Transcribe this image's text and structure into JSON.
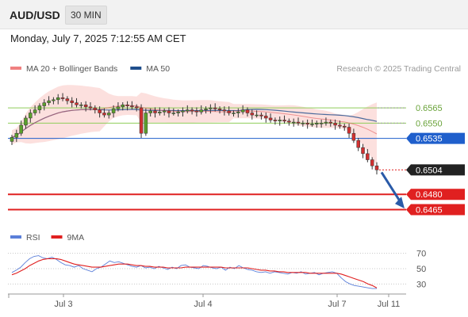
{
  "header": {
    "symbol": "AUD/USD",
    "timeframe": "30 MIN"
  },
  "timestamp": "Monday, July 7, 2025 7:12:55 AM CET",
  "chart_data": [
    {
      "type": "candlestick",
      "legend": [
        {
          "label": "MA 20 + Bollinger Bands",
          "color": "#f08080"
        },
        {
          "label": "MA 50",
          "color": "#1f4e8c"
        }
      ],
      "credit": "Research © 2025 Trading Central",
      "x_ticks": [
        "Jul 3",
        "Jul 4",
        "Jul 7",
        "Jul 11"
      ],
      "ylim": [
        0.6456,
        0.6583
      ],
      "current_price": 0.6504,
      "levels": [
        {
          "label": "0.6565",
          "value": 0.6565,
          "kind": "resistance",
          "color": "#8fce5a"
        },
        {
          "label": "0.6550",
          "value": 0.655,
          "kind": "resistance",
          "color": "#8fce5a"
        },
        {
          "label": "0.6535",
          "value": 0.6535,
          "kind": "pivot",
          "color": "#1f5fcc"
        },
        {
          "label": "0.6504",
          "value": 0.6504,
          "kind": "last",
          "color": "#222222"
        },
        {
          "label": "0.6480",
          "value": 0.648,
          "kind": "target",
          "color": "#e02020"
        },
        {
          "label": "0.6465",
          "value": 0.6465,
          "kind": "target",
          "color": "#e02020"
        }
      ],
      "forecast_arrow": {
        "from": 0.6504,
        "to": 0.6466,
        "direction": "down",
        "color": "#2a5aa8"
      },
      "closes": [
        0.6536,
        0.654,
        0.6548,
        0.6555,
        0.656,
        0.6563,
        0.6567,
        0.657,
        0.6572,
        0.6573,
        0.6575,
        0.6574,
        0.6572,
        0.657,
        0.6568,
        0.6568,
        0.6566,
        0.6565,
        0.6563,
        0.656,
        0.6558,
        0.656,
        0.6564,
        0.6566,
        0.6568,
        0.6567,
        0.6566,
        0.6565,
        0.654,
        0.656,
        0.6562,
        0.656,
        0.6561,
        0.6562,
        0.656,
        0.656,
        0.6561,
        0.6562,
        0.6563,
        0.6562,
        0.6561,
        0.6563,
        0.6564,
        0.6565,
        0.6564,
        0.6563,
        0.6562,
        0.656,
        0.656,
        0.6561,
        0.6563,
        0.656,
        0.6558,
        0.6558,
        0.6557,
        0.6555,
        0.6553,
        0.6552,
        0.6553,
        0.6552,
        0.6551,
        0.6551,
        0.655,
        0.655,
        0.6549,
        0.6549,
        0.655,
        0.655,
        0.6551,
        0.655,
        0.6548,
        0.6547,
        0.6546,
        0.654,
        0.6533,
        0.6526,
        0.652,
        0.6514,
        0.6508,
        0.6504
      ]
    },
    {
      "type": "line",
      "legend": [
        {
          "label": "RSI",
          "color": "#5b7fd9"
        },
        {
          "label": "9MA",
          "color": "#e02020"
        }
      ],
      "y_ticks": [
        "70",
        "50",
        "30"
      ],
      "ylim": [
        20,
        80
      ],
      "reference_lines": [
        70,
        50,
        30
      ],
      "series": [
        {
          "name": "RSI",
          "color": "#5b7fd9",
          "values": [
            45,
            48,
            52,
            58,
            63,
            66,
            67,
            64,
            63,
            65,
            62,
            58,
            55,
            54,
            52,
            54,
            50,
            48,
            46,
            50,
            52,
            56,
            60,
            58,
            59,
            57,
            55,
            53,
            52,
            54,
            51,
            52,
            50,
            53,
            51,
            49,
            52,
            50,
            54,
            55,
            52,
            51,
            50,
            54,
            53,
            51,
            50,
            52,
            48,
            52,
            50,
            54,
            51,
            49,
            48,
            46,
            45,
            46,
            44,
            46,
            45,
            44,
            43,
            45,
            44,
            46,
            43,
            44,
            45,
            42,
            44,
            45,
            46,
            44,
            38,
            33,
            30,
            28,
            27,
            26,
            25,
            24,
            24
          ]
        },
        {
          "name": "9MA",
          "color": "#e02020",
          "values": [
            42,
            44,
            47,
            50,
            54,
            57,
            60,
            62,
            63,
            63,
            63,
            62,
            60,
            58,
            56,
            55,
            54,
            53,
            52,
            52,
            52,
            53,
            54,
            55,
            56,
            56,
            56,
            55,
            54,
            54,
            53,
            53,
            52,
            52,
            52,
            51,
            51,
            51,
            51,
            52,
            52,
            52,
            52,
            52,
            52,
            52,
            52,
            52,
            51,
            51,
            51,
            51,
            51,
            51,
            50,
            49,
            48,
            48,
            47,
            47,
            46,
            46,
            45,
            45,
            45,
            45,
            45,
            44,
            44,
            44,
            44,
            44,
            44,
            44,
            43,
            41,
            39,
            37,
            35,
            33,
            30,
            28,
            25
          ]
        }
      ]
    }
  ]
}
